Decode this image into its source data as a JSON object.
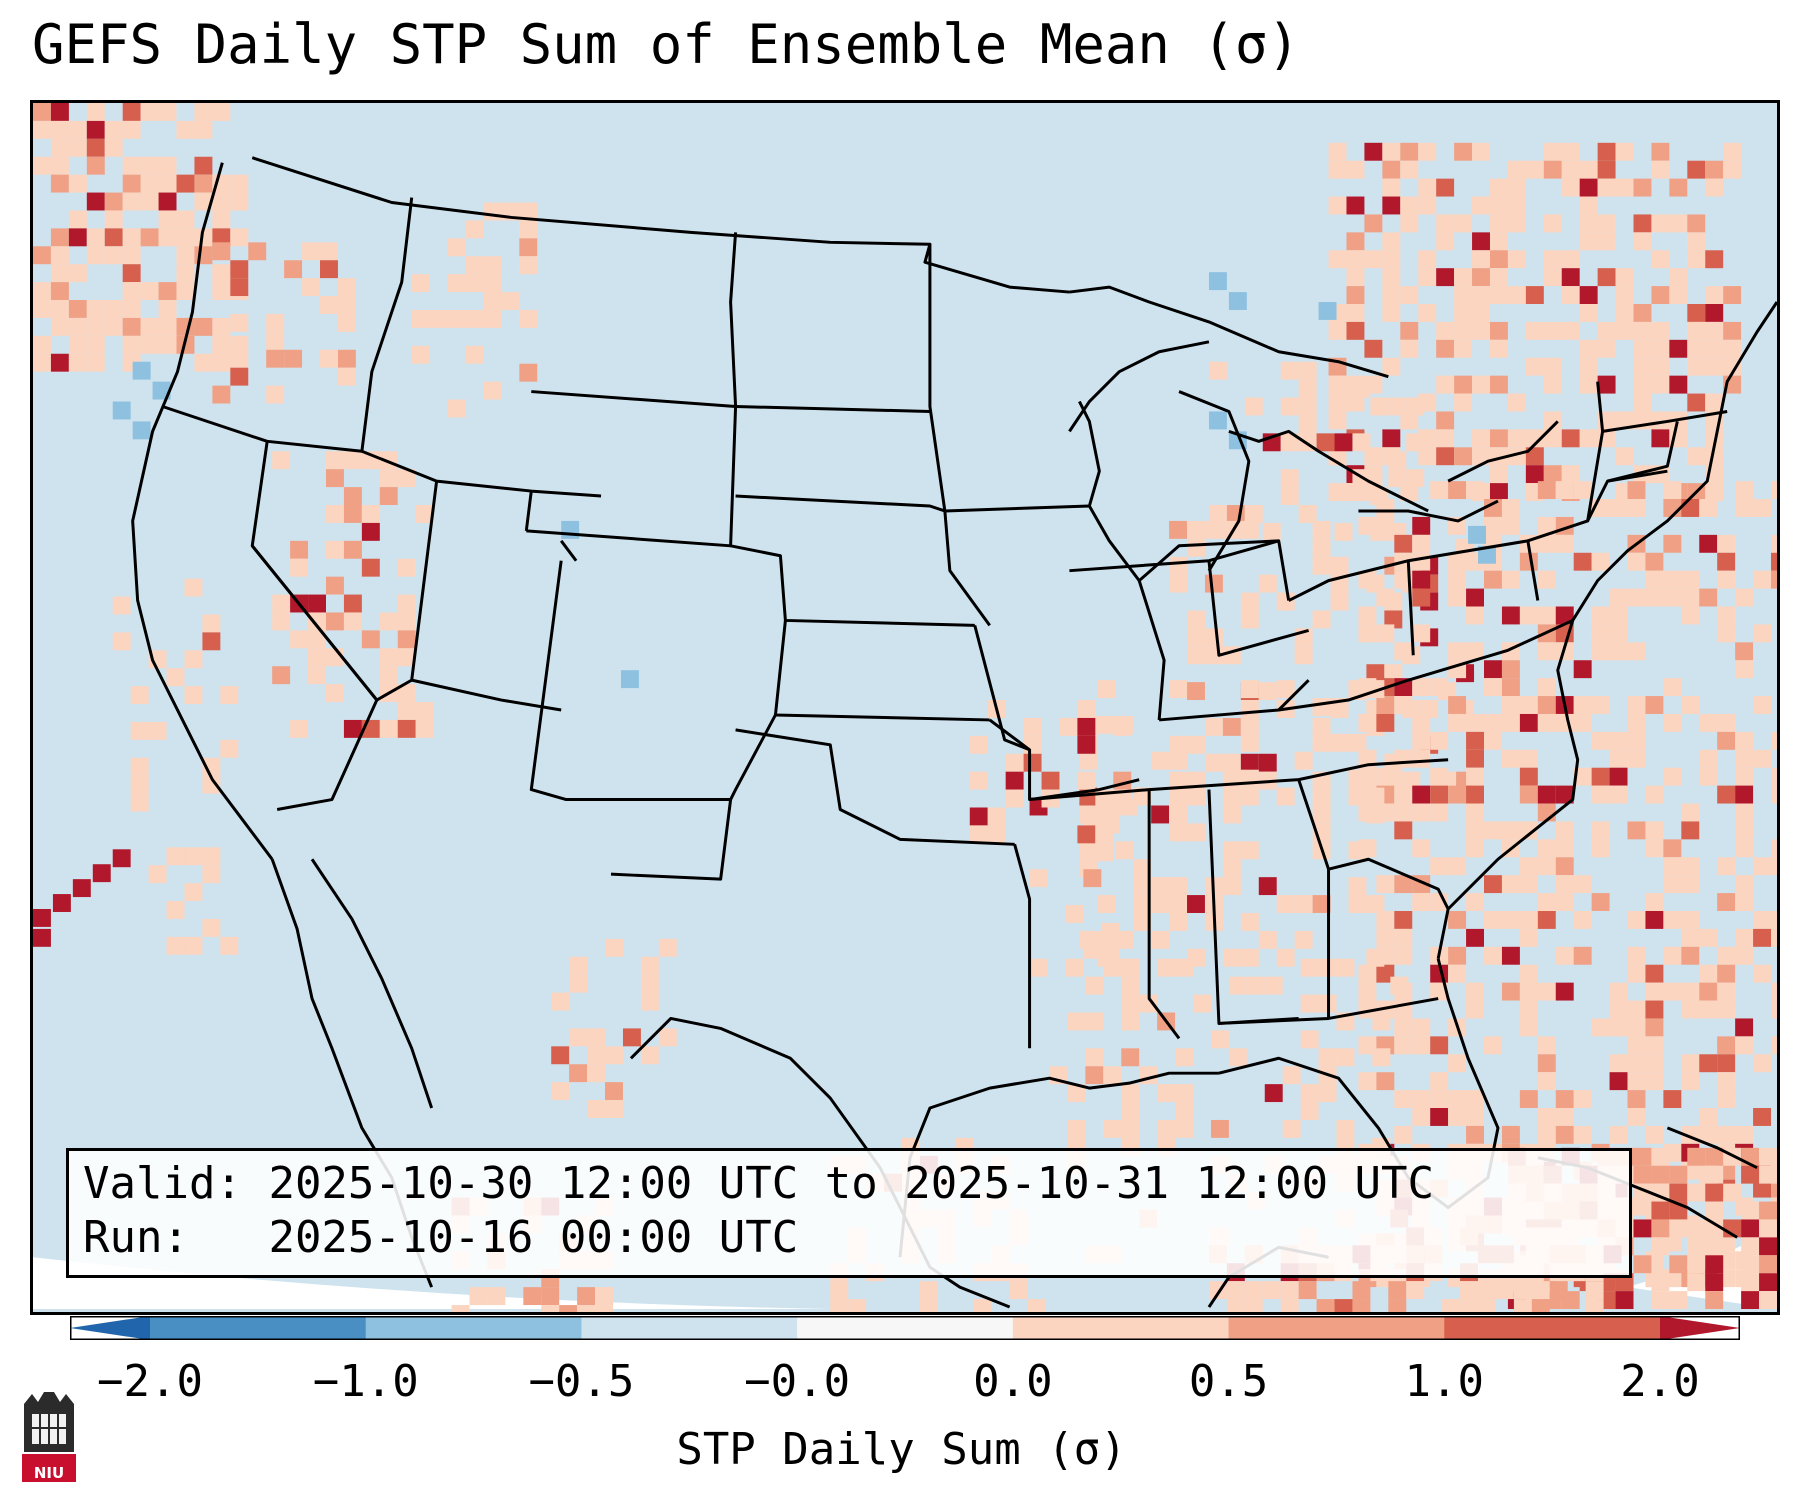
{
  "title": "GEFS Daily STP Sum of Ensemble Mean (σ)",
  "info": {
    "valid_label": "Valid:",
    "valid_value": "2025-10-30 12:00 UTC to 2025-10-31 12:00 UTC",
    "run_label": "Run:",
    "run_value": "2025-10-16 00:00 UTC"
  },
  "colorbar": {
    "label": "STP Daily Sum (σ)",
    "ticks": [
      "−2.0",
      "−1.0",
      "−0.5",
      "−0.0",
      "0.0",
      "0.5",
      "1.0",
      "2.0"
    ],
    "colors": [
      "#4a8fc4",
      "#8ec1df",
      "#cfe3ef",
      "#f7f7f7",
      "#fcd5c0",
      "#f0a185",
      "#d6604d"
    ],
    "extend_low_color": "#2166ac",
    "extend_high_color": "#b2182b"
  },
  "logo": {
    "text": "NIU",
    "name": "niu-logo"
  },
  "map": {
    "background_color": "#cfe3ef",
    "outside_projection_color": "#ffffff"
  }
}
